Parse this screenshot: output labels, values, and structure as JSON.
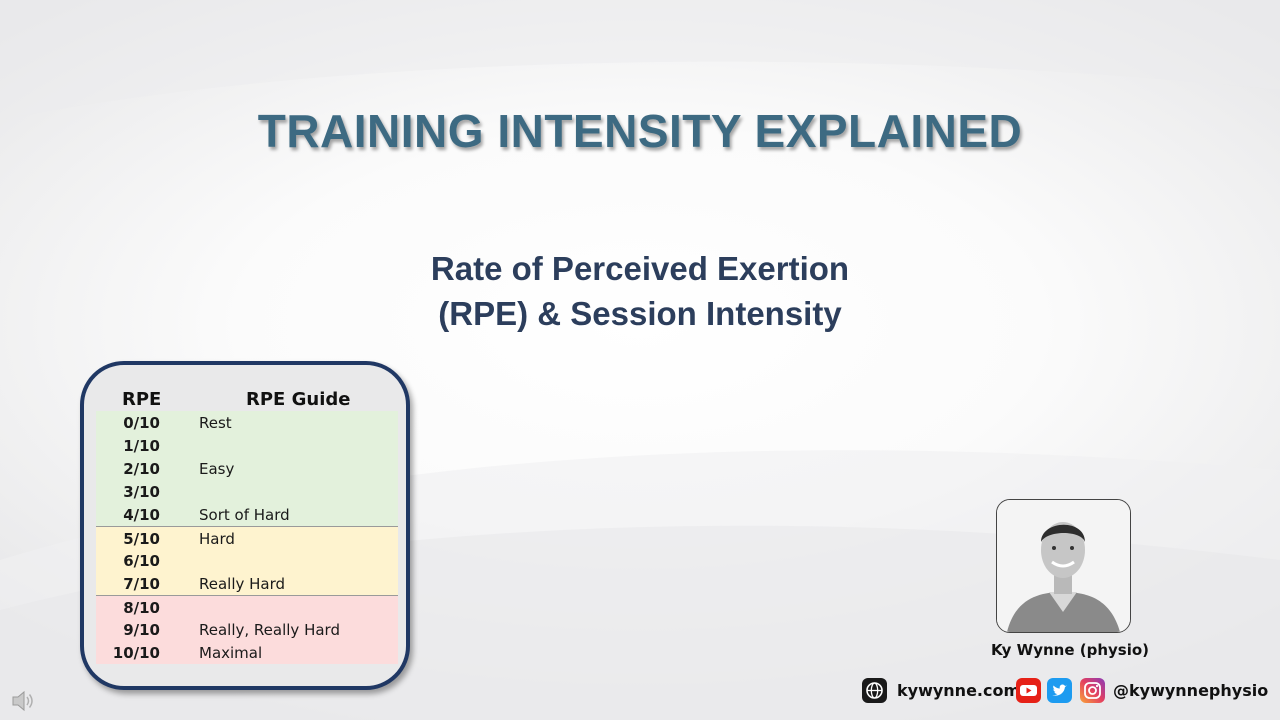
{
  "slide": {
    "title": "TRAINING INTENSITY EXPLAINED",
    "subtitle_line1": "Rate of Perceived Exertion",
    "subtitle_line2": "(RPE) & Session Intensity"
  },
  "rpe_table": {
    "header_rpe": "RPE",
    "header_guide": "RPE Guide",
    "rows": [
      {
        "value": "0/10",
        "guide": "Rest",
        "zone": "green"
      },
      {
        "value": "1/10",
        "guide": "",
        "zone": "green"
      },
      {
        "value": "2/10",
        "guide": "Easy",
        "zone": "green"
      },
      {
        "value": "3/10",
        "guide": "",
        "zone": "green"
      },
      {
        "value": "4/10",
        "guide": "Sort of Hard",
        "zone": "green"
      },
      {
        "value": "5/10",
        "guide": "Hard",
        "zone": "yellow"
      },
      {
        "value": "6/10",
        "guide": "",
        "zone": "yellow"
      },
      {
        "value": "7/10",
        "guide": "Really Hard",
        "zone": "yellow"
      },
      {
        "value": "8/10",
        "guide": "",
        "zone": "red"
      },
      {
        "value": "9/10",
        "guide": "Really, Really Hard",
        "zone": "red"
      },
      {
        "value": "10/10",
        "guide": "Maximal",
        "zone": "red"
      }
    ],
    "colors": {
      "green": "#e3f1dc",
      "yellow": "#fef3cf",
      "red": "#fcdcdc",
      "border": "#203864"
    }
  },
  "presenter": {
    "name": "Ky Wynne (physio)"
  },
  "footer": {
    "website": "kywynne.com",
    "handle": "@kywynnephysio",
    "icons": [
      "web-icon",
      "youtube-icon",
      "twitter-icon",
      "instagram-icon"
    ]
  },
  "theme": {
    "title_color": "#3d6a82",
    "subtitle_color": "#2c3e5c"
  }
}
